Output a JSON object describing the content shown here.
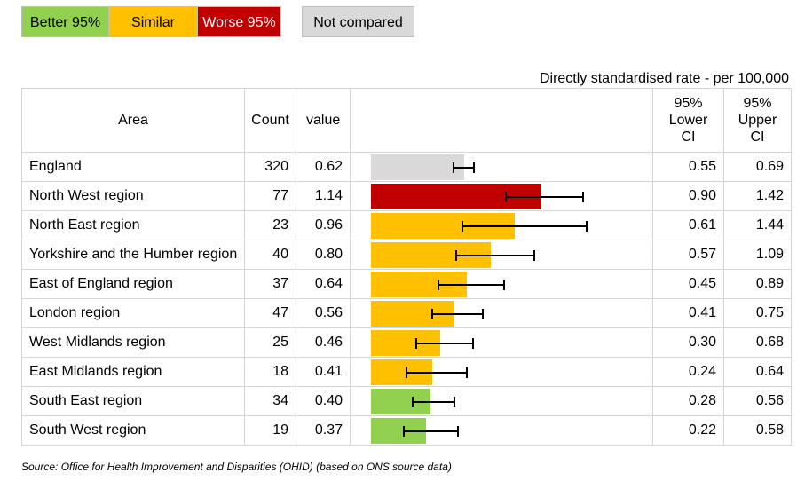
{
  "legend": [
    {
      "label": "Better 95%",
      "color": "#92d050"
    },
    {
      "label": "Similar",
      "color": "#ffc000"
    },
    {
      "label": "Worse 95%",
      "color": "#c00000"
    },
    {
      "label": "Not compared",
      "color": "#d9d9d9"
    }
  ],
  "unit_label": "Directly standardised rate - per 100,000",
  "headers": {
    "area": "Area",
    "count": "Count",
    "value": "value",
    "lower_ci": [
      "95%",
      "Lower",
      "CI"
    ],
    "upper_ci": [
      "95%",
      "Upper",
      "CI"
    ]
  },
  "chart_data": {
    "type": "bar",
    "orientation": "horizontal",
    "xlim": [
      0,
      1.75
    ],
    "error_bars": "95% confidence interval",
    "rows": [
      {
        "area": "England",
        "count": "320",
        "value": 0.62,
        "value_label": "0.62",
        "lower": 0.55,
        "lower_label": "0.55",
        "upper": 0.69,
        "upper_label": "0.69",
        "status": "Not compared"
      },
      {
        "area": "North West region",
        "count": "77",
        "value": 1.14,
        "value_label": "1.14",
        "lower": 0.9,
        "lower_label": "0.90",
        "upper": 1.42,
        "upper_label": "1.42",
        "status": "Worse 95%"
      },
      {
        "area": "North East region",
        "count": "23",
        "value": 0.96,
        "value_label": "0.96",
        "lower": 0.61,
        "lower_label": "0.61",
        "upper": 1.44,
        "upper_label": "1.44",
        "status": "Similar"
      },
      {
        "area": "Yorkshire and the Humber region",
        "count": "40",
        "value": 0.8,
        "value_label": "0.80",
        "lower": 0.57,
        "lower_label": "0.57",
        "upper": 1.09,
        "upper_label": "1.09",
        "status": "Similar"
      },
      {
        "area": "East of England region",
        "count": "37",
        "value": 0.64,
        "value_label": "0.64",
        "lower": 0.45,
        "lower_label": "0.45",
        "upper": 0.89,
        "upper_label": "0.89",
        "status": "Similar"
      },
      {
        "area": "London region",
        "count": "47",
        "value": 0.56,
        "value_label": "0.56",
        "lower": 0.41,
        "lower_label": "0.41",
        "upper": 0.75,
        "upper_label": "0.75",
        "status": "Similar"
      },
      {
        "area": "West Midlands region",
        "count": "25",
        "value": 0.46,
        "value_label": "0.46",
        "lower": 0.3,
        "lower_label": "0.30",
        "upper": 0.68,
        "upper_label": "0.68",
        "status": "Similar"
      },
      {
        "area": "East Midlands region",
        "count": "18",
        "value": 0.41,
        "value_label": "0.41",
        "lower": 0.24,
        "lower_label": "0.24",
        "upper": 0.64,
        "upper_label": "0.64",
        "status": "Similar"
      },
      {
        "area": "South East region",
        "count": "34",
        "value": 0.4,
        "value_label": "0.40",
        "lower": 0.28,
        "lower_label": "0.28",
        "upper": 0.56,
        "upper_label": "0.56",
        "status": "Better 95%"
      },
      {
        "area": "South West region",
        "count": "19",
        "value": 0.37,
        "value_label": "0.37",
        "lower": 0.22,
        "lower_label": "0.22",
        "upper": 0.58,
        "upper_label": "0.58",
        "status": "Better 95%"
      }
    ]
  },
  "source": "Source: Office for Health Improvement and Disparities (OHID) (based on ONS source data)"
}
